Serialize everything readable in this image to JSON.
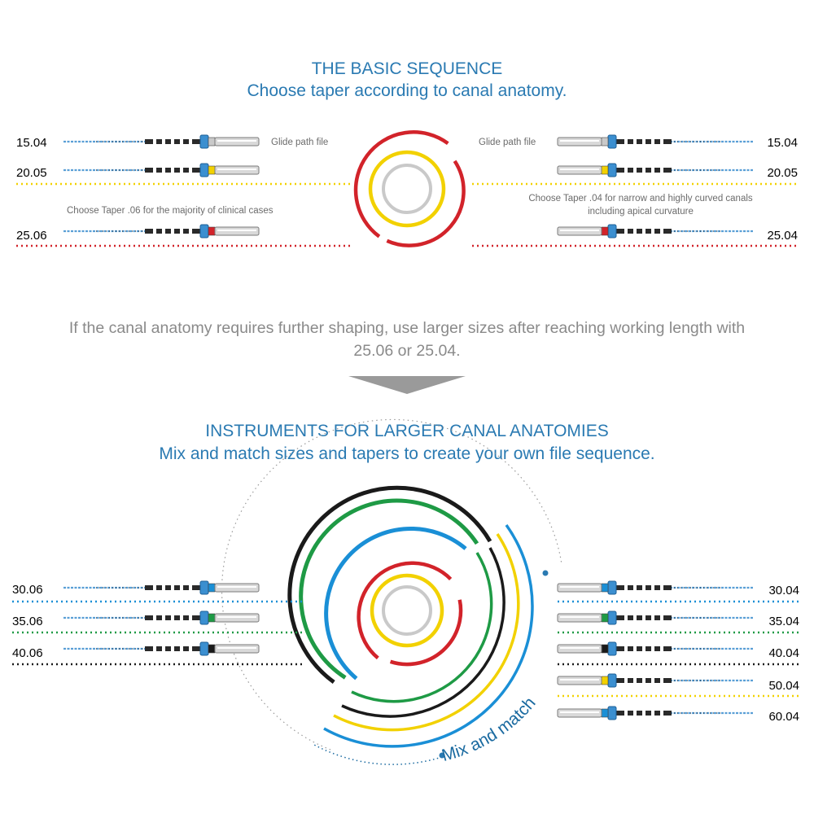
{
  "colors": {
    "white": "#c9c9c9",
    "yellow": "#f2d100",
    "red": "#d2232a",
    "blue": "#1a8fd6",
    "green": "#1e9a45",
    "black": "#1a1a1a",
    "heading": "#2a7ab2",
    "gray_text": "#8a8a8a",
    "file_blue": "#5a9fd6"
  },
  "basic": {
    "title": "THE BASIC SEQUENCE",
    "subtitle": "Choose taper according to canal anatomy.",
    "left_files": [
      {
        "label": "15.04",
        "color": "#c9c9c9"
      },
      {
        "label": "20.05",
        "color": "#f2d100"
      },
      {
        "label": "25.06",
        "color": "#d2232a"
      }
    ],
    "right_files": [
      {
        "label": "15.04",
        "color": "#c9c9c9"
      },
      {
        "label": "20.05",
        "color": "#f2d100"
      },
      {
        "label": "25.04",
        "color": "#d2232a"
      }
    ],
    "left_glide_note": "Glide path file",
    "right_glide_note": "Glide path file",
    "left_taper_note": "Choose Taper .06  for the majority of clinical cases",
    "right_taper_note_line1": "Choose Taper .04  for narrow and highly curved canals",
    "right_taper_note_line2": "including apical curvature"
  },
  "transition": {
    "line1": "If the canal anatomy requires further shaping, use larger sizes after reaching working length with",
    "line2": "25.06 or 25.04."
  },
  "larger": {
    "title": "INSTRUMENTS FOR LARGER CANAL ANATOMIES",
    "subtitle": "Mix and match sizes and tapers to create your own file sequence.",
    "left_files": [
      {
        "label": "30.06",
        "color": "#1a8fd6"
      },
      {
        "label": "35.06",
        "color": "#1e9a45"
      },
      {
        "label": "40.06",
        "color": "#1a1a1a"
      }
    ],
    "right_files": [
      {
        "label": "30.04",
        "color": "#1a8fd6"
      },
      {
        "label": "35.04",
        "color": "#1e9a45"
      },
      {
        "label": "40.04",
        "color": "#1a1a1a"
      },
      {
        "label": "50.04",
        "color": "#f2d100"
      },
      {
        "label": "60.04",
        "color": "#1a8fd6"
      }
    ],
    "mix_match_label": "Mix and match"
  }
}
